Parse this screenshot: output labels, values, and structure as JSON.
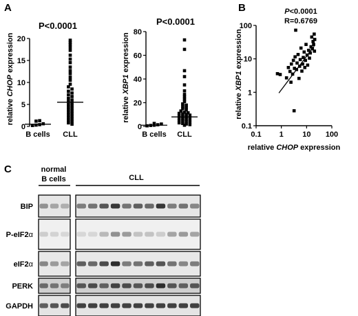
{
  "panels": {
    "a": "A",
    "b": "B",
    "c": "C"
  },
  "chart_data": [
    {
      "type": "scatter",
      "title": "P<0.0001",
      "xlabel": "",
      "ylabel": "relative CHOP expression",
      "ylabel_pre": "relative ",
      "ylabel_gene": "CHOP",
      "ylabel_post": " expression",
      "categories": [
        "B cells",
        "CLL"
      ],
      "ylim": [
        0,
        20
      ],
      "yticks": [
        0,
        5,
        10,
        15,
        20
      ],
      "medians": [
        0.5,
        5.5
      ],
      "groups": [
        {
          "name": "B cells",
          "values": [
            0.2,
            0.3,
            0.4,
            0.6,
            1.2,
            1.3
          ]
        },
        {
          "name": "CLL",
          "values": [
            19.6,
            19.1,
            18.6,
            18.0,
            17.3,
            16.2,
            15.3,
            14.5,
            13.5,
            12.7,
            12.0,
            11.2,
            10.5,
            9.6,
            9.0,
            8.5,
            8.0,
            7.6,
            7.2,
            6.8,
            6.4,
            6.0,
            5.7,
            5.3,
            5.0,
            4.7,
            4.4,
            4.1,
            3.8,
            3.5,
            3.2,
            2.9,
            2.6,
            2.3,
            2.0,
            1.7,
            1.4,
            1.1,
            0.8,
            0.5
          ]
        }
      ]
    },
    {
      "type": "scatter",
      "title": "P<0.0001",
      "xlabel": "",
      "ylabel": "relative XBP1 expression",
      "ylabel_pre": "relative ",
      "ylabel_gene": "XBP1",
      "ylabel_post": " expression",
      "categories": [
        "B cells",
        "CLL"
      ],
      "ylim": [
        0,
        80
      ],
      "yticks": [
        0,
        20,
        40,
        60,
        80
      ],
      "medians": [
        1,
        8
      ],
      "groups": [
        {
          "name": "B cells",
          "values": [
            0.5,
            0.8,
            1.0,
            1.4,
            2.0,
            2.5
          ]
        },
        {
          "name": "CLL",
          "values": [
            73,
            65,
            47,
            42,
            35,
            30,
            27,
            25,
            23,
            21,
            19,
            18,
            17,
            16,
            15,
            14,
            13,
            12,
            11.5,
            11,
            10.5,
            10,
            9.5,
            9,
            8.5,
            8,
            7.5,
            7,
            6.5,
            6,
            5.5,
            5,
            4.5,
            4,
            3.5,
            3,
            2.5,
            2,
            1.5,
            1
          ]
        }
      ]
    },
    {
      "type": "scatter",
      "title": "",
      "annotation_p": "P<0.0001",
      "annotation_r": "R=0.6769",
      "xlabel": "relative CHOP expression",
      "xlabel_pre": "relative ",
      "xlabel_gene": "CHOP",
      "xlabel_post": " expression",
      "ylabel": "relative XBP1 expression",
      "ylabel_pre": "relative ",
      "ylabel_gene": "XBP1",
      "ylabel_post": " expression",
      "xscale": "log",
      "yscale": "log",
      "xlim": [
        0.1,
        100
      ],
      "ylim": [
        0.1,
        100
      ],
      "xticks": [
        0.1,
        1,
        10,
        100
      ],
      "xticklabels": [
        "0.1",
        "1",
        "10",
        "100"
      ],
      "yticks": [
        0.1,
        1,
        10,
        100
      ],
      "yticklabels": [
        "0.1",
        "1",
        "10",
        "100"
      ],
      "fit": {
        "x": [
          0.8,
          20
        ],
        "y": [
          0.95,
          24
        ]
      },
      "points": [
        {
          "x": 0.7,
          "y": 3.6
        },
        {
          "x": 0.9,
          "y": 3.4
        },
        {
          "x": 1.6,
          "y": 2.7
        },
        {
          "x": 1.9,
          "y": 5.5
        },
        {
          "x": 2.2,
          "y": 4.2
        },
        {
          "x": 2.4,
          "y": 2.0
        },
        {
          "x": 2.5,
          "y": 7.0
        },
        {
          "x": 2.8,
          "y": 3.5
        },
        {
          "x": 3.0,
          "y": 9.0
        },
        {
          "x": 3.2,
          "y": 0.28
        },
        {
          "x": 3.3,
          "y": 5.2
        },
        {
          "x": 3.5,
          "y": 11.5
        },
        {
          "x": 3.7,
          "y": 72
        },
        {
          "x": 4.0,
          "y": 4.8
        },
        {
          "x": 4.2,
          "y": 7.5
        },
        {
          "x": 4.6,
          "y": 13.5
        },
        {
          "x": 5.0,
          "y": 2.6
        },
        {
          "x": 5.3,
          "y": 6.0
        },
        {
          "x": 5.6,
          "y": 9.5
        },
        {
          "x": 6.0,
          "y": 21
        },
        {
          "x": 6.5,
          "y": 4.3
        },
        {
          "x": 7.0,
          "y": 7.0
        },
        {
          "x": 7.4,
          "y": 11
        },
        {
          "x": 8.0,
          "y": 16
        },
        {
          "x": 8.5,
          "y": 5.5
        },
        {
          "x": 9.0,
          "y": 9.0
        },
        {
          "x": 9.5,
          "y": 27
        },
        {
          "x": 10.5,
          "y": 13
        },
        {
          "x": 11.0,
          "y": 6.5
        },
        {
          "x": 12.0,
          "y": 18
        },
        {
          "x": 13.0,
          "y": 10.5
        },
        {
          "x": 14.0,
          "y": 15
        },
        {
          "x": 15.0,
          "y": 23
        },
        {
          "x": 16.0,
          "y": 45
        },
        {
          "x": 17.0,
          "y": 20
        },
        {
          "x": 18.0,
          "y": 33
        },
        {
          "x": 19.0,
          "y": 27
        },
        {
          "x": 20.0,
          "y": 55
        },
        {
          "x": 20.5,
          "y": 17
        },
        {
          "x": 21.0,
          "y": 38
        }
      ]
    }
  ],
  "blot": {
    "normal_label_line1": "normal",
    "normal_label_line2": "B cells",
    "cll_label": "CLL",
    "normal_lanes": 3,
    "cll_lanes": 11,
    "rows": [
      {
        "label": "BIP",
        "label_pre": "BIP",
        "label_greek": "",
        "intensity_normal": [
          0.45,
          0.35,
          0.3
        ],
        "intensity_cll": [
          0.55,
          0.6,
          0.75,
          0.9,
          0.6,
          0.7,
          0.65,
          0.9,
          0.55,
          0.6,
          0.5
        ],
        "bg": "#e6e6e6"
      },
      {
        "label": "P-eIF2α",
        "label_pre": "P-eIF2",
        "label_greek": "α",
        "intensity_normal": [
          0.15,
          0.12,
          0.1
        ],
        "intensity_cll": [
          0.1,
          0.1,
          0.25,
          0.45,
          0.4,
          0.2,
          0.2,
          0.15,
          0.35,
          0.4,
          0.35
        ],
        "bg": "#f0f0f0"
      },
      {
        "label": "eIF2α",
        "label_pre": "eIF2",
        "label_greek": "α",
        "intensity_normal": [
          0.5,
          0.4,
          0.35
        ],
        "intensity_cll": [
          0.7,
          0.65,
          0.8,
          0.95,
          0.55,
          0.6,
          0.7,
          0.75,
          0.6,
          0.5,
          0.55
        ],
        "bg": "#e8e8e8"
      },
      {
        "label": "PERK",
        "label_pre": "PERK",
        "label_greek": "",
        "intensity_normal": [
          0.65,
          0.6,
          0.55
        ],
        "intensity_cll": [
          0.75,
          0.8,
          0.7,
          0.85,
          0.8,
          0.75,
          0.8,
          0.95,
          0.75,
          0.7,
          0.75
        ],
        "bg": "#cfcfcf"
      },
      {
        "label": "GAPDH",
        "label_pre": "GAPDH",
        "label_greek": "",
        "intensity_normal": [
          0.7,
          0.75,
          0.8
        ],
        "intensity_cll": [
          0.85,
          0.85,
          0.85,
          0.85,
          0.85,
          0.85,
          0.85,
          0.85,
          0.85,
          0.85,
          0.85
        ],
        "bg": "#e4e4e4"
      }
    ]
  }
}
